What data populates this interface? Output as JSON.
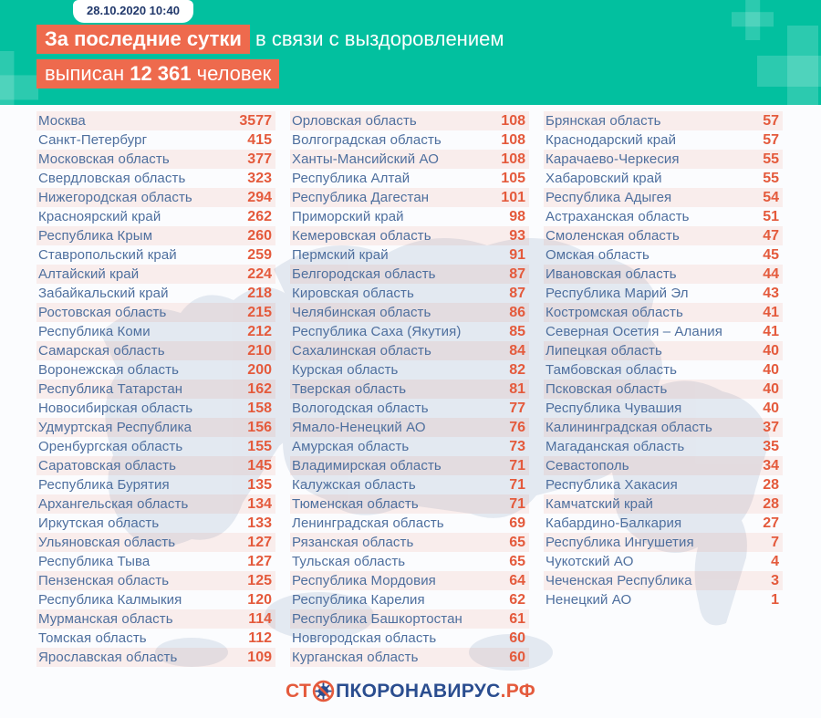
{
  "header": {
    "datetime": "28.10.2020 10:40",
    "title_line1_highlight": "За последние сутки",
    "title_line1_rest": " в связи с выздоровлением",
    "title_line2_prefix": "выписан ",
    "title_line2_number": "12 361",
    "title_line2_suffix": " человек"
  },
  "chart_data": {
    "type": "table",
    "title": "За последние сутки в связи с выздоровлением выписан 12 361 человек",
    "timestamp": "28.10.2020 10:40",
    "total_discharged": 12361,
    "value_meaning": "discharged_per_region",
    "columns": [
      [
        {
          "region": "Москва",
          "value": 3577
        },
        {
          "region": "Санкт-Петербург",
          "value": 415
        },
        {
          "region": "Московская область",
          "value": 377
        },
        {
          "region": "Свердловская область",
          "value": 323
        },
        {
          "region": "Нижегородская область",
          "value": 294
        },
        {
          "region": "Красноярский край",
          "value": 262
        },
        {
          "region": "Республика Крым",
          "value": 260
        },
        {
          "region": "Ставропольский край",
          "value": 259
        },
        {
          "region": "Алтайский край",
          "value": 224
        },
        {
          "region": "Забайкальский край",
          "value": 218
        },
        {
          "region": "Ростовская область",
          "value": 215
        },
        {
          "region": "Республика Коми",
          "value": 212
        },
        {
          "region": "Самарская область",
          "value": 210
        },
        {
          "region": "Воронежская область",
          "value": 200
        },
        {
          "region": "Республика Татарстан",
          "value": 162
        },
        {
          "region": "Новосибирская область",
          "value": 158
        },
        {
          "region": "Удмуртская Республика",
          "value": 156
        },
        {
          "region": "Оренбургская область",
          "value": 155
        },
        {
          "region": "Саратовская область",
          "value": 145
        },
        {
          "region": "Республика Бурятия",
          "value": 135
        },
        {
          "region": "Архангельская область",
          "value": 134
        },
        {
          "region": "Иркутская область",
          "value": 133
        },
        {
          "region": "Ульяновская область",
          "value": 127
        },
        {
          "region": "Республика Тыва",
          "value": 127
        },
        {
          "region": "Пензенская область",
          "value": 125
        },
        {
          "region": "Республика Калмыкия",
          "value": 120
        },
        {
          "region": "Мурманская область",
          "value": 114
        },
        {
          "region": "Томская область",
          "value": 112
        },
        {
          "region": "Ярославская область",
          "value": 109
        }
      ],
      [
        {
          "region": "Орловская область",
          "value": 108
        },
        {
          "region": "Волгоградская область",
          "value": 108
        },
        {
          "region": "Ханты-Мансийский АО",
          "value": 108
        },
        {
          "region": "Республика Алтай",
          "value": 105
        },
        {
          "region": "Республика Дагестан",
          "value": 101
        },
        {
          "region": "Приморский край",
          "value": 98
        },
        {
          "region": "Кемеровская область",
          "value": 93
        },
        {
          "region": "Пермский край",
          "value": 91
        },
        {
          "region": "Белгородская область",
          "value": 87
        },
        {
          "region": "Кировская область",
          "value": 87
        },
        {
          "region": "Челябинская область",
          "value": 86
        },
        {
          "region": "Республика Саха (Якутия)",
          "value": 85
        },
        {
          "region": "Сахалинская область",
          "value": 84
        },
        {
          "region": "Курская область",
          "value": 82
        },
        {
          "region": "Тверская область",
          "value": 81
        },
        {
          "region": "Вологодская область",
          "value": 77
        },
        {
          "region": "Ямало-Ненецкий АО",
          "value": 76
        },
        {
          "region": "Амурская область",
          "value": 73
        },
        {
          "region": "Владимирская область",
          "value": 71
        },
        {
          "region": "Калужская область",
          "value": 71
        },
        {
          "region": "Тюменская область",
          "value": 71
        },
        {
          "region": "Ленинградская область",
          "value": 69
        },
        {
          "region": "Рязанская область",
          "value": 65
        },
        {
          "region": "Тульская область",
          "value": 65
        },
        {
          "region": "Республика Мордовия",
          "value": 64
        },
        {
          "region": "Республика Карелия",
          "value": 62
        },
        {
          "region": "Республика Башкортостан",
          "value": 61
        },
        {
          "region": "Новгородская область",
          "value": 60
        },
        {
          "region": "Курганская область",
          "value": 60
        }
      ],
      [
        {
          "region": "Брянская область",
          "value": 57
        },
        {
          "region": "Краснодарский край",
          "value": 57
        },
        {
          "region": "Карачаево-Черкесия",
          "value": 55
        },
        {
          "region": "Хабаровский край",
          "value": 55
        },
        {
          "region": "Республика Адыгея",
          "value": 54
        },
        {
          "region": "Астраханская область",
          "value": 51
        },
        {
          "region": "Смоленская область",
          "value": 47
        },
        {
          "region": "Омская область",
          "value": 45
        },
        {
          "region": "Ивановская область",
          "value": 44
        },
        {
          "region": "Республика Марий Эл",
          "value": 43
        },
        {
          "region": "Костромская область",
          "value": 41
        },
        {
          "region": "Северная Осетия – Алания",
          "value": 41
        },
        {
          "region": "Липецкая область",
          "value": 40
        },
        {
          "region": "Тамбовская область",
          "value": 40
        },
        {
          "region": "Псковская область",
          "value": 40
        },
        {
          "region": "Республика Чувашия",
          "value": 40
        },
        {
          "region": "Калининградская область",
          "value": 37
        },
        {
          "region": "Магаданская область",
          "value": 35
        },
        {
          "region": "Севастополь",
          "value": 34
        },
        {
          "region": "Республика Хакасия",
          "value": 28
        },
        {
          "region": "Камчатский край",
          "value": 28
        },
        {
          "region": "Кабардино-Балкария",
          "value": 27
        },
        {
          "region": "Республика Ингушетия",
          "value": 7
        },
        {
          "region": "Чукотский АО",
          "value": 4
        },
        {
          "region": "Чеченская Республика",
          "value": 3
        },
        {
          "region": "Ненецкий АО",
          "value": 1
        }
      ]
    ]
  },
  "footer": {
    "logo_prefix": "СТ",
    "logo_middle": "ПКОРОНАВИРУС",
    "logo_suffix": ".РФ"
  },
  "colors": {
    "header_teal": "#02c09f",
    "highlight_coral": "#ee6a4d",
    "number_red": "#e45a3c",
    "region_blue": "#4e6f9e",
    "date_navy": "#21386b",
    "logo_blue": "#2a4d8f",
    "map_silhouette": "#ccd5e3"
  }
}
